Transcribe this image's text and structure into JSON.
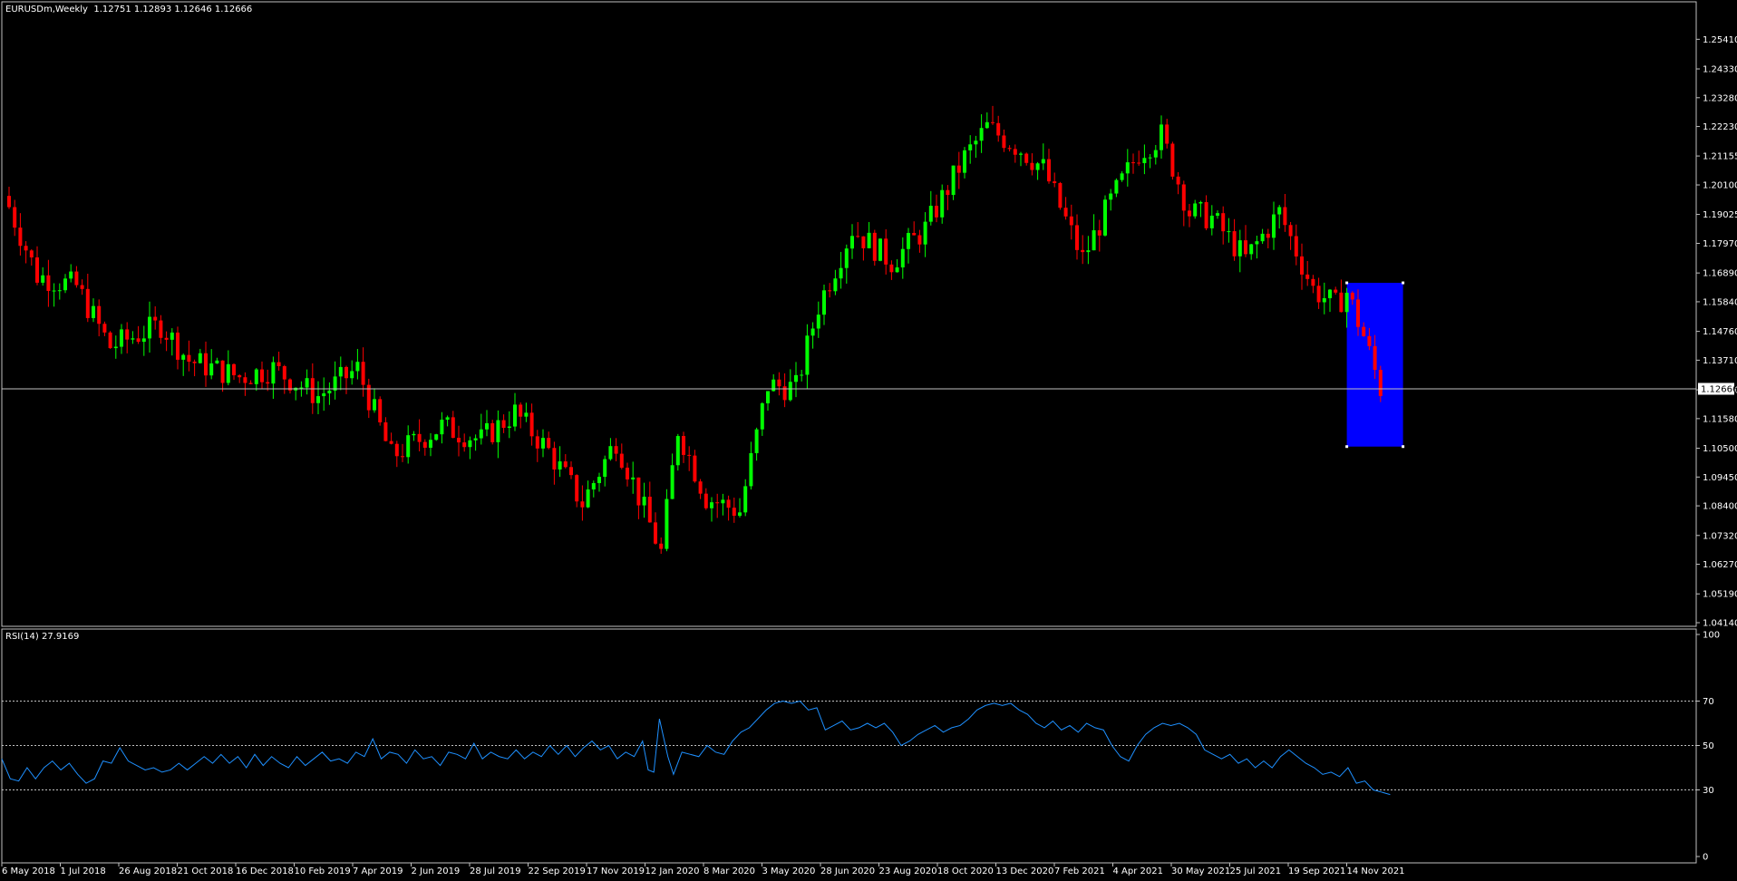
{
  "main_header": {
    "symbol": "EURUSDm,Weekly",
    "ohlc": "1.12751 1.12893 1.12646 1.12666"
  },
  "rsi_header": {
    "label": "RSI(14) 27.9169"
  },
  "colors": {
    "background": "#000000",
    "bull": "#00ff00",
    "bear": "#ff0000",
    "rectangle": "#0000ff",
    "rsi_line": "#1e90ff",
    "grid": "#c0c0c0"
  },
  "chart_data": [
    {
      "type": "candlestick",
      "title": "EURUSDm,Weekly",
      "y_ticks": [
        "1.25410",
        "1.24330",
        "1.23280",
        "1.22230",
        "1.21155",
        "1.20100",
        "1.19025",
        "1.17970",
        "1.16890",
        "1.15840",
        "1.14760",
        "1.13710",
        "1.12630",
        "1.11580",
        "1.10500",
        "1.09450",
        "1.08400",
        "1.07320",
        "1.06270",
        "1.05190",
        "1.04140"
      ],
      "ylim": [
        1.0414,
        1.2595
      ],
      "current_price": "1.12666",
      "current_price_value": 1.12666,
      "x_ticks": [
        "6 May 2018",
        "1 Jul 2018",
        "26 Aug 2018",
        "21 Oct 2018",
        "16 Dec 2018",
        "10 Feb 2019",
        "7 Apr 2019",
        "2 Jun 2019",
        "28 Jul 2019",
        "22 Sep 2019",
        "17 Nov 2019",
        "12 Jan 2020",
        "8 Mar 2020",
        "3 May 2020",
        "28 Jun 2020",
        "23 Aug 2020",
        "18 Oct 2020",
        "13 Dec 2020",
        "7 Feb 2021",
        "4 Apr 2021",
        "30 May 2021",
        "25 Jul 2021",
        "19 Sep 2021",
        "14 Nov 2021"
      ],
      "anchor_closes": [
        [
          0,
          1.193
        ],
        [
          5,
          1.168
        ],
        [
          12,
          1.164
        ],
        [
          18,
          1.142
        ],
        [
          27,
          1.15
        ],
        [
          32,
          1.137
        ],
        [
          41,
          1.131
        ],
        [
          47,
          1.134
        ],
        [
          55,
          1.124
        ],
        [
          62,
          1.134
        ],
        [
          68,
          1.102
        ],
        [
          77,
          1.113
        ],
        [
          84,
          1.108
        ],
        [
          90,
          1.118
        ],
        [
          96,
          1.104
        ],
        [
          102,
          1.085
        ],
        [
          108,
          1.108
        ],
        [
          116,
          1.067
        ],
        [
          119,
          1.112
        ],
        [
          124,
          1.087
        ],
        [
          130,
          1.082
        ],
        [
          135,
          1.128
        ],
        [
          140,
          1.127
        ],
        [
          144,
          1.157
        ],
        [
          150,
          1.185
        ],
        [
          157,
          1.173
        ],
        [
          163,
          1.185
        ],
        [
          170,
          1.211
        ],
        [
          174,
          1.222
        ],
        [
          180,
          1.214
        ],
        [
          184,
          1.207
        ],
        [
          191,
          1.174
        ],
        [
          196,
          1.195
        ],
        [
          201,
          1.213
        ],
        [
          205,
          1.219
        ],
        [
          210,
          1.191
        ],
        [
          214,
          1.189
        ],
        [
          220,
          1.174
        ],
        [
          226,
          1.191
        ],
        [
          232,
          1.163
        ],
        [
          236,
          1.157
        ],
        [
          238,
          1.162
        ],
        [
          241,
          1.146
        ],
        [
          244,
          1.1267
        ]
      ],
      "rectangle": {
        "from_index": 238,
        "to_index": 248,
        "top": 1.1653,
        "bottom": 1.1056,
        "color": "#0000ff"
      }
    },
    {
      "type": "line",
      "title": "RSI(14) 27.9169",
      "y_ticks": [
        "100",
        "70",
        "50",
        "30",
        "0"
      ],
      "levels": [
        70,
        50,
        30
      ],
      "ylim": [
        0,
        100
      ],
      "last_value": 27.9169,
      "values": [
        [
          0,
          44
        ],
        [
          3,
          35
        ],
        [
          6,
          34
        ],
        [
          9,
          40
        ],
        [
          12,
          35
        ],
        [
          15,
          40
        ],
        [
          18,
          43
        ],
        [
          21,
          39
        ],
        [
          24,
          42
        ],
        [
          27,
          37
        ],
        [
          30,
          33
        ],
        [
          33,
          35
        ],
        [
          36,
          43
        ],
        [
          39,
          42
        ],
        [
          42,
          49
        ],
        [
          45,
          43
        ],
        [
          48,
          41
        ],
        [
          51,
          39
        ],
        [
          54,
          40
        ],
        [
          57,
          38
        ],
        [
          60,
          39
        ],
        [
          63,
          42
        ],
        [
          66,
          39
        ],
        [
          69,
          42
        ],
        [
          72,
          45
        ],
        [
          75,
          42
        ],
        [
          78,
          46
        ],
        [
          81,
          42
        ],
        [
          84,
          45
        ],
        [
          87,
          40
        ],
        [
          90,
          46
        ],
        [
          93,
          41
        ],
        [
          96,
          45
        ],
        [
          99,
          42
        ],
        [
          102,
          40
        ],
        [
          105,
          45
        ],
        [
          108,
          41
        ],
        [
          111,
          44
        ],
        [
          114,
          47
        ],
        [
          117,
          43
        ],
        [
          120,
          44
        ],
        [
          123,
          42
        ],
        [
          126,
          47
        ],
        [
          129,
          45
        ],
        [
          132,
          53
        ],
        [
          135,
          44
        ],
        [
          138,
          47
        ],
        [
          141,
          46
        ],
        [
          144,
          42
        ],
        [
          147,
          48
        ],
        [
          150,
          44
        ],
        [
          153,
          45
        ],
        [
          156,
          41
        ],
        [
          159,
          47
        ],
        [
          162,
          46
        ],
        [
          165,
          44
        ],
        [
          168,
          51
        ],
        [
          171,
          44
        ],
        [
          174,
          47
        ],
        [
          177,
          45
        ],
        [
          180,
          44
        ],
        [
          183,
          48
        ],
        [
          186,
          44
        ],
        [
          189,
          47
        ],
        [
          192,
          45
        ],
        [
          195,
          50
        ],
        [
          198,
          46
        ],
        [
          201,
          50
        ],
        [
          204,
          45
        ],
        [
          207,
          49
        ],
        [
          210,
          52
        ],
        [
          213,
          48
        ],
        [
          216,
          50
        ],
        [
          219,
          44
        ],
        [
          222,
          47
        ],
        [
          225,
          45
        ],
        [
          228,
          52
        ],
        [
          230,
          39
        ],
        [
          232,
          38
        ],
        [
          234,
          62
        ],
        [
          237,
          45
        ],
        [
          239,
          37
        ],
        [
          242,
          47
        ],
        [
          245,
          46
        ],
        [
          248,
          45
        ],
        [
          251,
          50
        ],
        [
          254,
          47
        ],
        [
          257,
          46
        ],
        [
          260,
          52
        ],
        [
          263,
          56
        ],
        [
          266,
          58
        ],
        [
          269,
          62
        ],
        [
          272,
          66
        ],
        [
          275,
          69
        ],
        [
          278,
          70
        ],
        [
          281,
          69
        ],
        [
          284,
          70
        ],
        [
          287,
          66
        ],
        [
          290,
          67
        ],
        [
          293,
          57
        ],
        [
          296,
          59
        ],
        [
          299,
          61
        ],
        [
          302,
          57
        ],
        [
          305,
          58
        ],
        [
          308,
          60
        ],
        [
          311,
          58
        ],
        [
          314,
          60
        ],
        [
          317,
          56
        ],
        [
          320,
          50
        ],
        [
          323,
          52
        ],
        [
          326,
          55
        ],
        [
          329,
          57
        ],
        [
          332,
          59
        ],
        [
          335,
          56
        ],
        [
          338,
          58
        ],
        [
          341,
          59
        ],
        [
          344,
          62
        ],
        [
          347,
          66
        ],
        [
          350,
          68
        ],
        [
          353,
          69
        ],
        [
          356,
          68
        ],
        [
          359,
          69
        ],
        [
          362,
          66
        ],
        [
          365,
          64
        ],
        [
          368,
          60
        ],
        [
          371,
          58
        ],
        [
          374,
          61
        ],
        [
          377,
          57
        ],
        [
          380,
          59
        ],
        [
          383,
          56
        ],
        [
          386,
          60
        ],
        [
          389,
          58
        ],
        [
          392,
          57
        ],
        [
          395,
          50
        ],
        [
          398,
          45
        ],
        [
          401,
          43
        ],
        [
          404,
          50
        ],
        [
          407,
          55
        ],
        [
          410,
          58
        ],
        [
          413,
          60
        ],
        [
          416,
          59
        ],
        [
          419,
          60
        ],
        [
          422,
          58
        ],
        [
          425,
          55
        ],
        [
          428,
          48
        ],
        [
          431,
          46
        ],
        [
          434,
          44
        ],
        [
          437,
          46
        ],
        [
          440,
          42
        ],
        [
          443,
          44
        ],
        [
          446,
          40
        ],
        [
          449,
          43
        ],
        [
          452,
          40
        ],
        [
          455,
          45
        ],
        [
          458,
          48
        ],
        [
          461,
          45
        ],
        [
          464,
          42
        ],
        [
          467,
          40
        ],
        [
          470,
          37
        ],
        [
          473,
          38
        ],
        [
          476,
          36
        ],
        [
          479,
          40
        ],
        [
          482,
          33
        ],
        [
          485,
          34
        ],
        [
          488,
          30
        ],
        [
          491,
          29
        ],
        [
          494,
          27.9
        ]
      ]
    }
  ]
}
